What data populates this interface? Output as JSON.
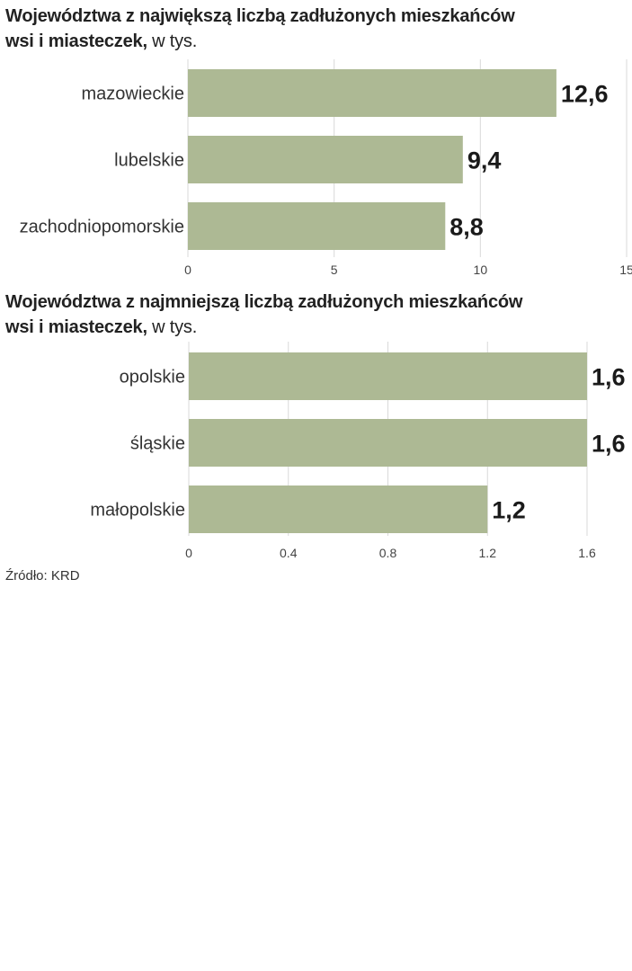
{
  "chart_data": [
    {
      "type": "bar",
      "orientation": "horizontal",
      "title_line1": "Województwa z największą liczbą zadłużonych mieszkańców",
      "title_line2_bold": "wsi i miasteczek,",
      "title_unit": " w tys.",
      "categories": [
        "mazowieckie",
        "lubelskie",
        "zachodniopomorskie"
      ],
      "values": [
        12.6,
        9.4,
        8.8
      ],
      "value_labels": [
        "12,6",
        "9,4",
        "8,8"
      ],
      "xlim": [
        0,
        15
      ],
      "ticks": [
        0,
        5,
        10,
        15
      ],
      "tick_labels": [
        "0",
        "5",
        "10",
        "15"
      ],
      "grid": true,
      "bar_color": "#adb994"
    },
    {
      "type": "bar",
      "orientation": "horizontal",
      "title_line1": "Województwa z najmniejszą liczbą zadłużonych mieszkańców",
      "title_line2_bold": "wsi i miasteczek,",
      "title_unit": " w tys.",
      "categories": [
        "opolskie",
        "śląskie",
        "małopolskie"
      ],
      "values": [
        1.6,
        1.6,
        1.2
      ],
      "value_labels": [
        "1,6",
        "1,6",
        "1,2"
      ],
      "xlim": [
        0,
        1.6
      ],
      "ticks": [
        0,
        0.4,
        0.8,
        1.2,
        1.6
      ],
      "tick_labels": [
        "0",
        "0.4",
        "0.8",
        "1.2",
        "1.6"
      ],
      "grid": true,
      "bar_color": "#adb994"
    }
  ],
  "source": "Źródło: KRD"
}
